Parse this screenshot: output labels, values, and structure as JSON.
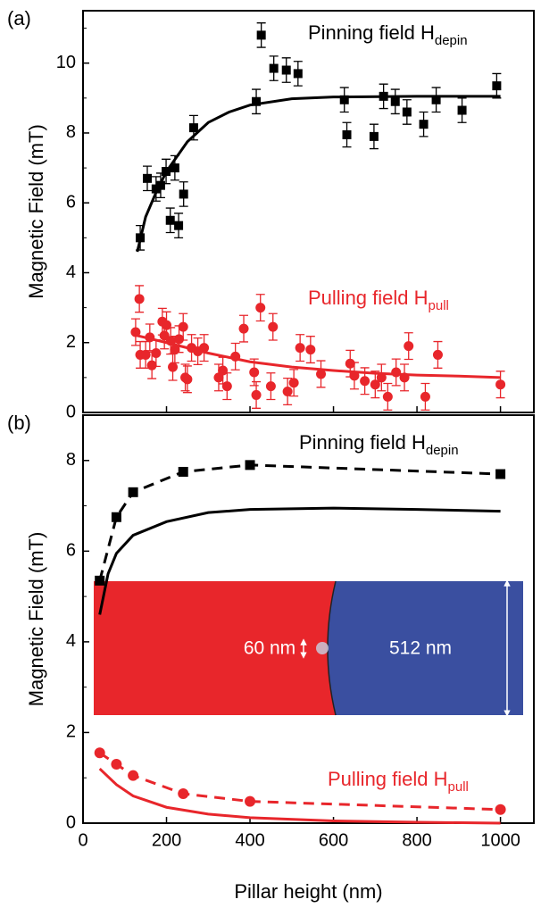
{
  "chart_data": [
    {
      "type": "scatter",
      "panel_label": "(a)",
      "ylabel": "Magnetic Field (mT)",
      "xlim": [
        0,
        1080
      ],
      "ylim": [
        0,
        11.5
      ],
      "yticks": [
        0,
        2,
        4,
        6,
        8,
        10
      ],
      "labels": [
        {
          "text": "Pinning field H",
          "sub": "depin",
          "color": "#000000"
        },
        {
          "text": "Pulling field H",
          "sub": "pull",
          "color": "#e8262b"
        }
      ],
      "series": [
        {
          "color": "#000000",
          "marker": "square",
          "x": [
            137,
            154,
            175,
            186,
            199,
            209,
            220,
            229,
            241,
            265,
            415,
            427,
            457,
            487,
            515,
            626,
            632,
            697,
            720,
            748,
            776,
            816,
            846,
            908,
            991
          ],
          "values": [
            5.0,
            6.7,
            6.4,
            6.5,
            6.9,
            5.5,
            7.0,
            5.35,
            6.25,
            8.15,
            8.9,
            10.8,
            9.85,
            9.8,
            9.7,
            8.95,
            7.95,
            7.9,
            9.05,
            8.9,
            8.6,
            8.25,
            8.95,
            8.65,
            9.35
          ],
          "errors": [
            0.35,
            0.35,
            0.35,
            0.35,
            0.35,
            0.35,
            0.35,
            0.35,
            0.35,
            0.35,
            0.35,
            0.35,
            0.35,
            0.35,
            0.35,
            0.35,
            0.35,
            0.35,
            0.35,
            0.35,
            0.35,
            0.35,
            0.35,
            0.35,
            0.35
          ]
        },
        {
          "color": "#e8262b",
          "marker": "circle",
          "x": [
            126,
            135,
            137,
            150,
            160,
            165,
            175,
            190,
            195,
            200,
            210,
            215,
            220,
            230,
            240,
            245,
            250,
            260,
            275,
            290,
            325,
            335,
            345,
            365,
            385,
            410,
            415,
            425,
            450,
            455,
            490,
            505,
            520,
            545,
            570,
            640,
            650,
            675,
            700,
            715,
            730,
            750,
            770,
            780,
            820,
            850,
            1000
          ],
          "values": [
            2.3,
            3.25,
            1.65,
            1.65,
            2.15,
            1.35,
            1.7,
            2.6,
            2.2,
            2.5,
            2.05,
            1.3,
            1.8,
            2.1,
            2.45,
            1.0,
            0.95,
            1.85,
            1.75,
            1.85,
            1.0,
            1.2,
            0.75,
            1.6,
            2.4,
            1.15,
            0.5,
            3.0,
            0.75,
            2.45,
            0.6,
            0.85,
            1.85,
            1.8,
            1.1,
            1.4,
            1.05,
            0.9,
            0.8,
            1.0,
            0.45,
            1.15,
            1.0,
            1.9,
            0.45,
            1.65,
            0.8
          ],
          "errors": [
            0.38,
            0.38,
            0.38,
            0.38,
            0.38,
            0.38,
            0.38,
            0.38,
            0.38,
            0.38,
            0.38,
            0.38,
            0.38,
            0.38,
            0.38,
            0.38,
            0.38,
            0.38,
            0.38,
            0.38,
            0.38,
            0.38,
            0.38,
            0.38,
            0.38,
            0.38,
            0.38,
            0.38,
            0.38,
            0.38,
            0.38,
            0.38,
            0.38,
            0.38,
            0.38,
            0.38,
            0.38,
            0.38,
            0.38,
            0.38,
            0.38,
            0.38,
            0.38,
            0.38,
            0.38,
            0.38,
            0.38
          ]
        },
        {
          "color": "#000000",
          "style": "solid",
          "x": [
            130,
            150,
            175,
            200,
            250,
            300,
            350,
            400,
            500,
            600,
            800,
            1000
          ],
          "values": [
            4.6,
            5.6,
            6.3,
            6.9,
            7.75,
            8.3,
            8.6,
            8.8,
            8.98,
            9.03,
            9.05,
            9.05
          ]
        },
        {
          "color": "#e8262b",
          "style": "solid",
          "x": [
            130,
            200,
            300,
            400,
            500,
            600,
            700,
            800,
            900,
            1000
          ],
          "values": [
            2.2,
            2.0,
            1.7,
            1.45,
            1.3,
            1.2,
            1.12,
            1.07,
            1.04,
            1.0
          ]
        }
      ]
    },
    {
      "type": "scatter",
      "panel_label": "(b)",
      "ylabel": "Magnetic Field (mT)",
      "xlabel": "Pillar height (nm)",
      "xlim": [
        0,
        1080
      ],
      "xticks": [
        0,
        200,
        400,
        600,
        800,
        1000
      ],
      "ylim": [
        0,
        9
      ],
      "yticks": [
        0,
        2,
        4,
        6,
        8
      ],
      "labels": [
        {
          "text": "Pinning field H",
          "sub": "depin",
          "color": "#000000"
        },
        {
          "text": "Pulling field H",
          "sub": "pull",
          "color": "#e8262b"
        }
      ],
      "inset_labels": [
        "60 nm",
        "512 nm"
      ],
      "series": [
        {
          "color": "#000000",
          "marker": "square",
          "style": "dashed",
          "x": [
            40,
            80,
            120,
            240,
            400,
            1000
          ],
          "values": [
            5.35,
            6.75,
            7.3,
            7.75,
            7.9,
            7.7
          ]
        },
        {
          "color": "#e8262b",
          "marker": "circle",
          "style": "dashed",
          "x": [
            40,
            80,
            120,
            240,
            400,
            1000
          ],
          "values": [
            1.55,
            1.3,
            1.05,
            0.65,
            0.48,
            0.3
          ]
        },
        {
          "color": "#000000",
          "style": "solid",
          "x": [
            40,
            60,
            80,
            120,
            200,
            300,
            400,
            600,
            800,
            1000
          ],
          "values": [
            4.6,
            5.5,
            5.95,
            6.35,
            6.65,
            6.85,
            6.92,
            6.95,
            6.92,
            6.88
          ]
        },
        {
          "color": "#e8262b",
          "style": "solid",
          "x": [
            40,
            80,
            120,
            200,
            300,
            400,
            600,
            800,
            1000
          ],
          "values": [
            1.2,
            0.85,
            0.6,
            0.35,
            0.2,
            0.12,
            0.05,
            0.02,
            0.0
          ]
        }
      ]
    }
  ]
}
